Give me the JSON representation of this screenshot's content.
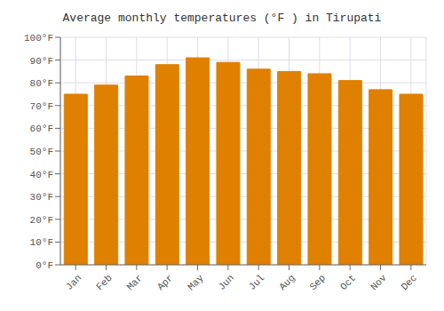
{
  "chart_data": {
    "type": "bar",
    "title": "Average monthly temperatures (°F ) in Tirupati",
    "categories": [
      "Jan",
      "Feb",
      "Mar",
      "Apr",
      "May",
      "Jun",
      "Jul",
      "Aug",
      "Sep",
      "Oct",
      "Nov",
      "Dec"
    ],
    "values": [
      75,
      79,
      83,
      88,
      91,
      89,
      86,
      85,
      84,
      81,
      77,
      75
    ],
    "color": "#E08000",
    "ylim": [
      0,
      100
    ],
    "yticks": [
      {
        "value": 0,
        "label": "0°F"
      },
      {
        "value": 10,
        "label": "10°F"
      },
      {
        "value": 20,
        "label": "20°F"
      },
      {
        "value": 30,
        "label": "30°F"
      },
      {
        "value": 40,
        "label": "40°F"
      },
      {
        "value": 50,
        "label": "50°F"
      },
      {
        "value": 60,
        "label": "60°F"
      },
      {
        "value": 70,
        "label": "70°F"
      },
      {
        "value": 80,
        "label": "80°F"
      },
      {
        "value": 90,
        "label": "90°F"
      },
      {
        "value": 100,
        "label": "100°F"
      }
    ],
    "grid": true
  }
}
